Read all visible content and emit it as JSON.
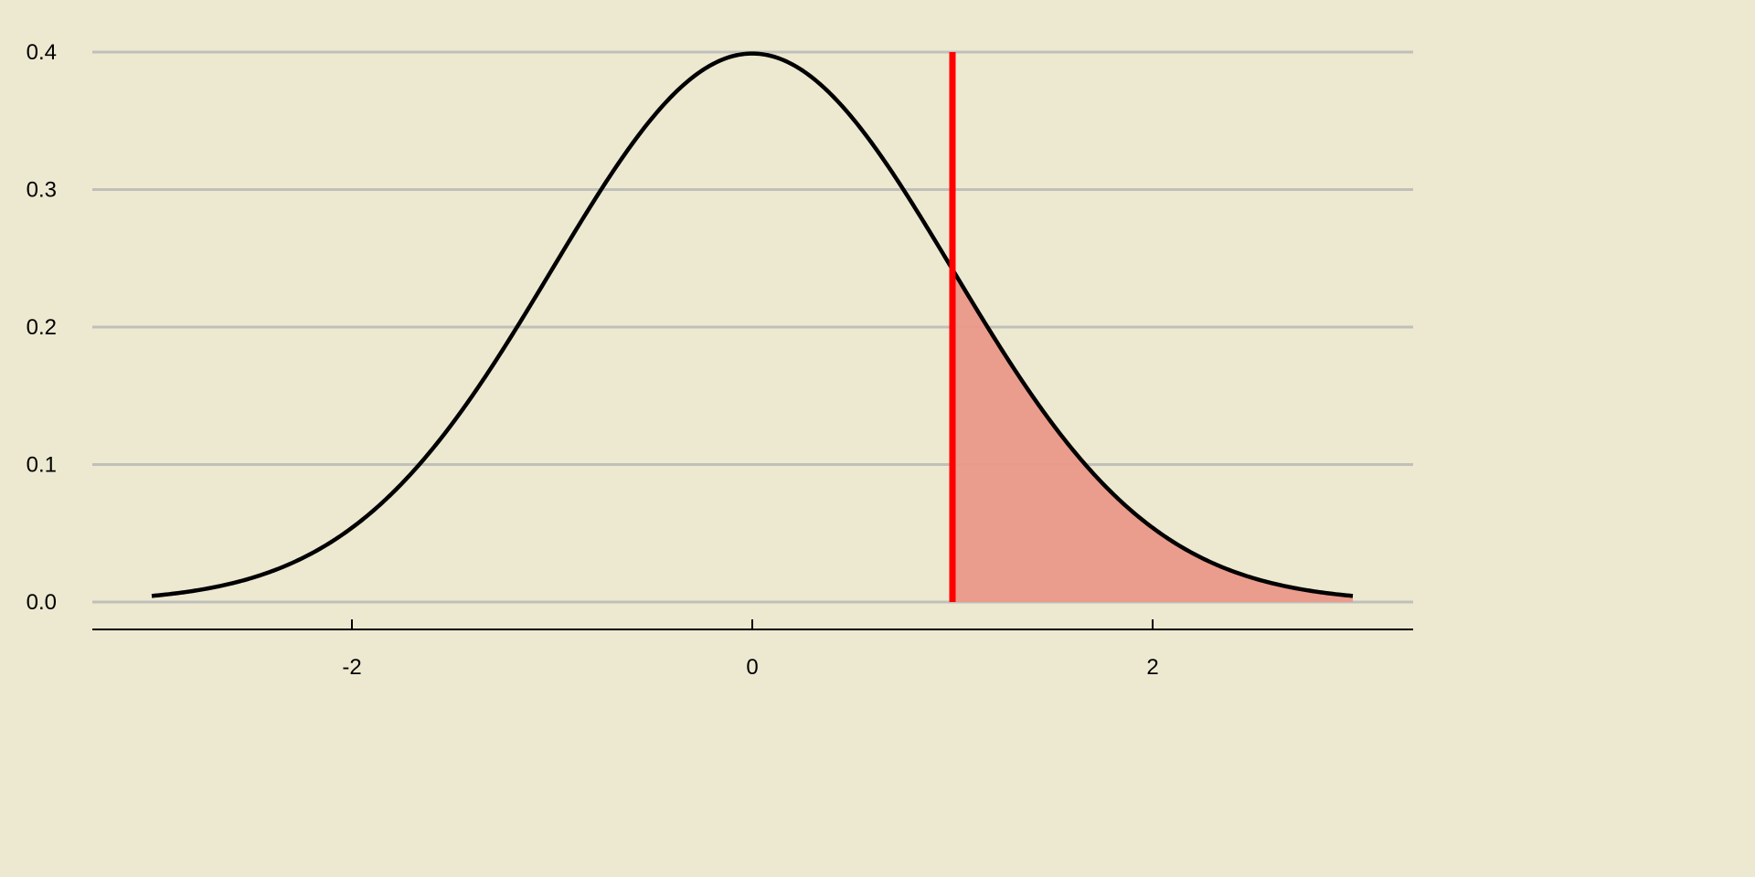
{
  "chart_data": {
    "type": "area",
    "title": "",
    "xlabel": "",
    "ylabel": "",
    "distribution": "standard normal density",
    "mean": 0,
    "sd": 1,
    "x_range": [
      -3,
      3
    ],
    "xlim": [
      -3.3,
      3.3
    ],
    "ylim": [
      0,
      0.4
    ],
    "x_ticks": [
      -2,
      0,
      2
    ],
    "x_tick_labels": [
      "-2",
      "0",
      "2"
    ],
    "y_ticks": [
      0,
      0.1,
      0.2,
      0.3,
      0.4
    ],
    "y_tick_labels": [
      "0.0",
      "0.1",
      "0.2",
      "0.3",
      "0.4"
    ],
    "shaded_region": {
      "from": 1,
      "to": 3
    },
    "vertical_line": {
      "x": 1,
      "y_from": 0,
      "y_to": 0.4
    },
    "grid": "horizontal major",
    "legend": "none",
    "colors": {
      "background": "#ede9d0",
      "grid": "#c0bfba",
      "curve": "#000000",
      "vline": "#ff0000",
      "fill": "#ea9889"
    }
  }
}
